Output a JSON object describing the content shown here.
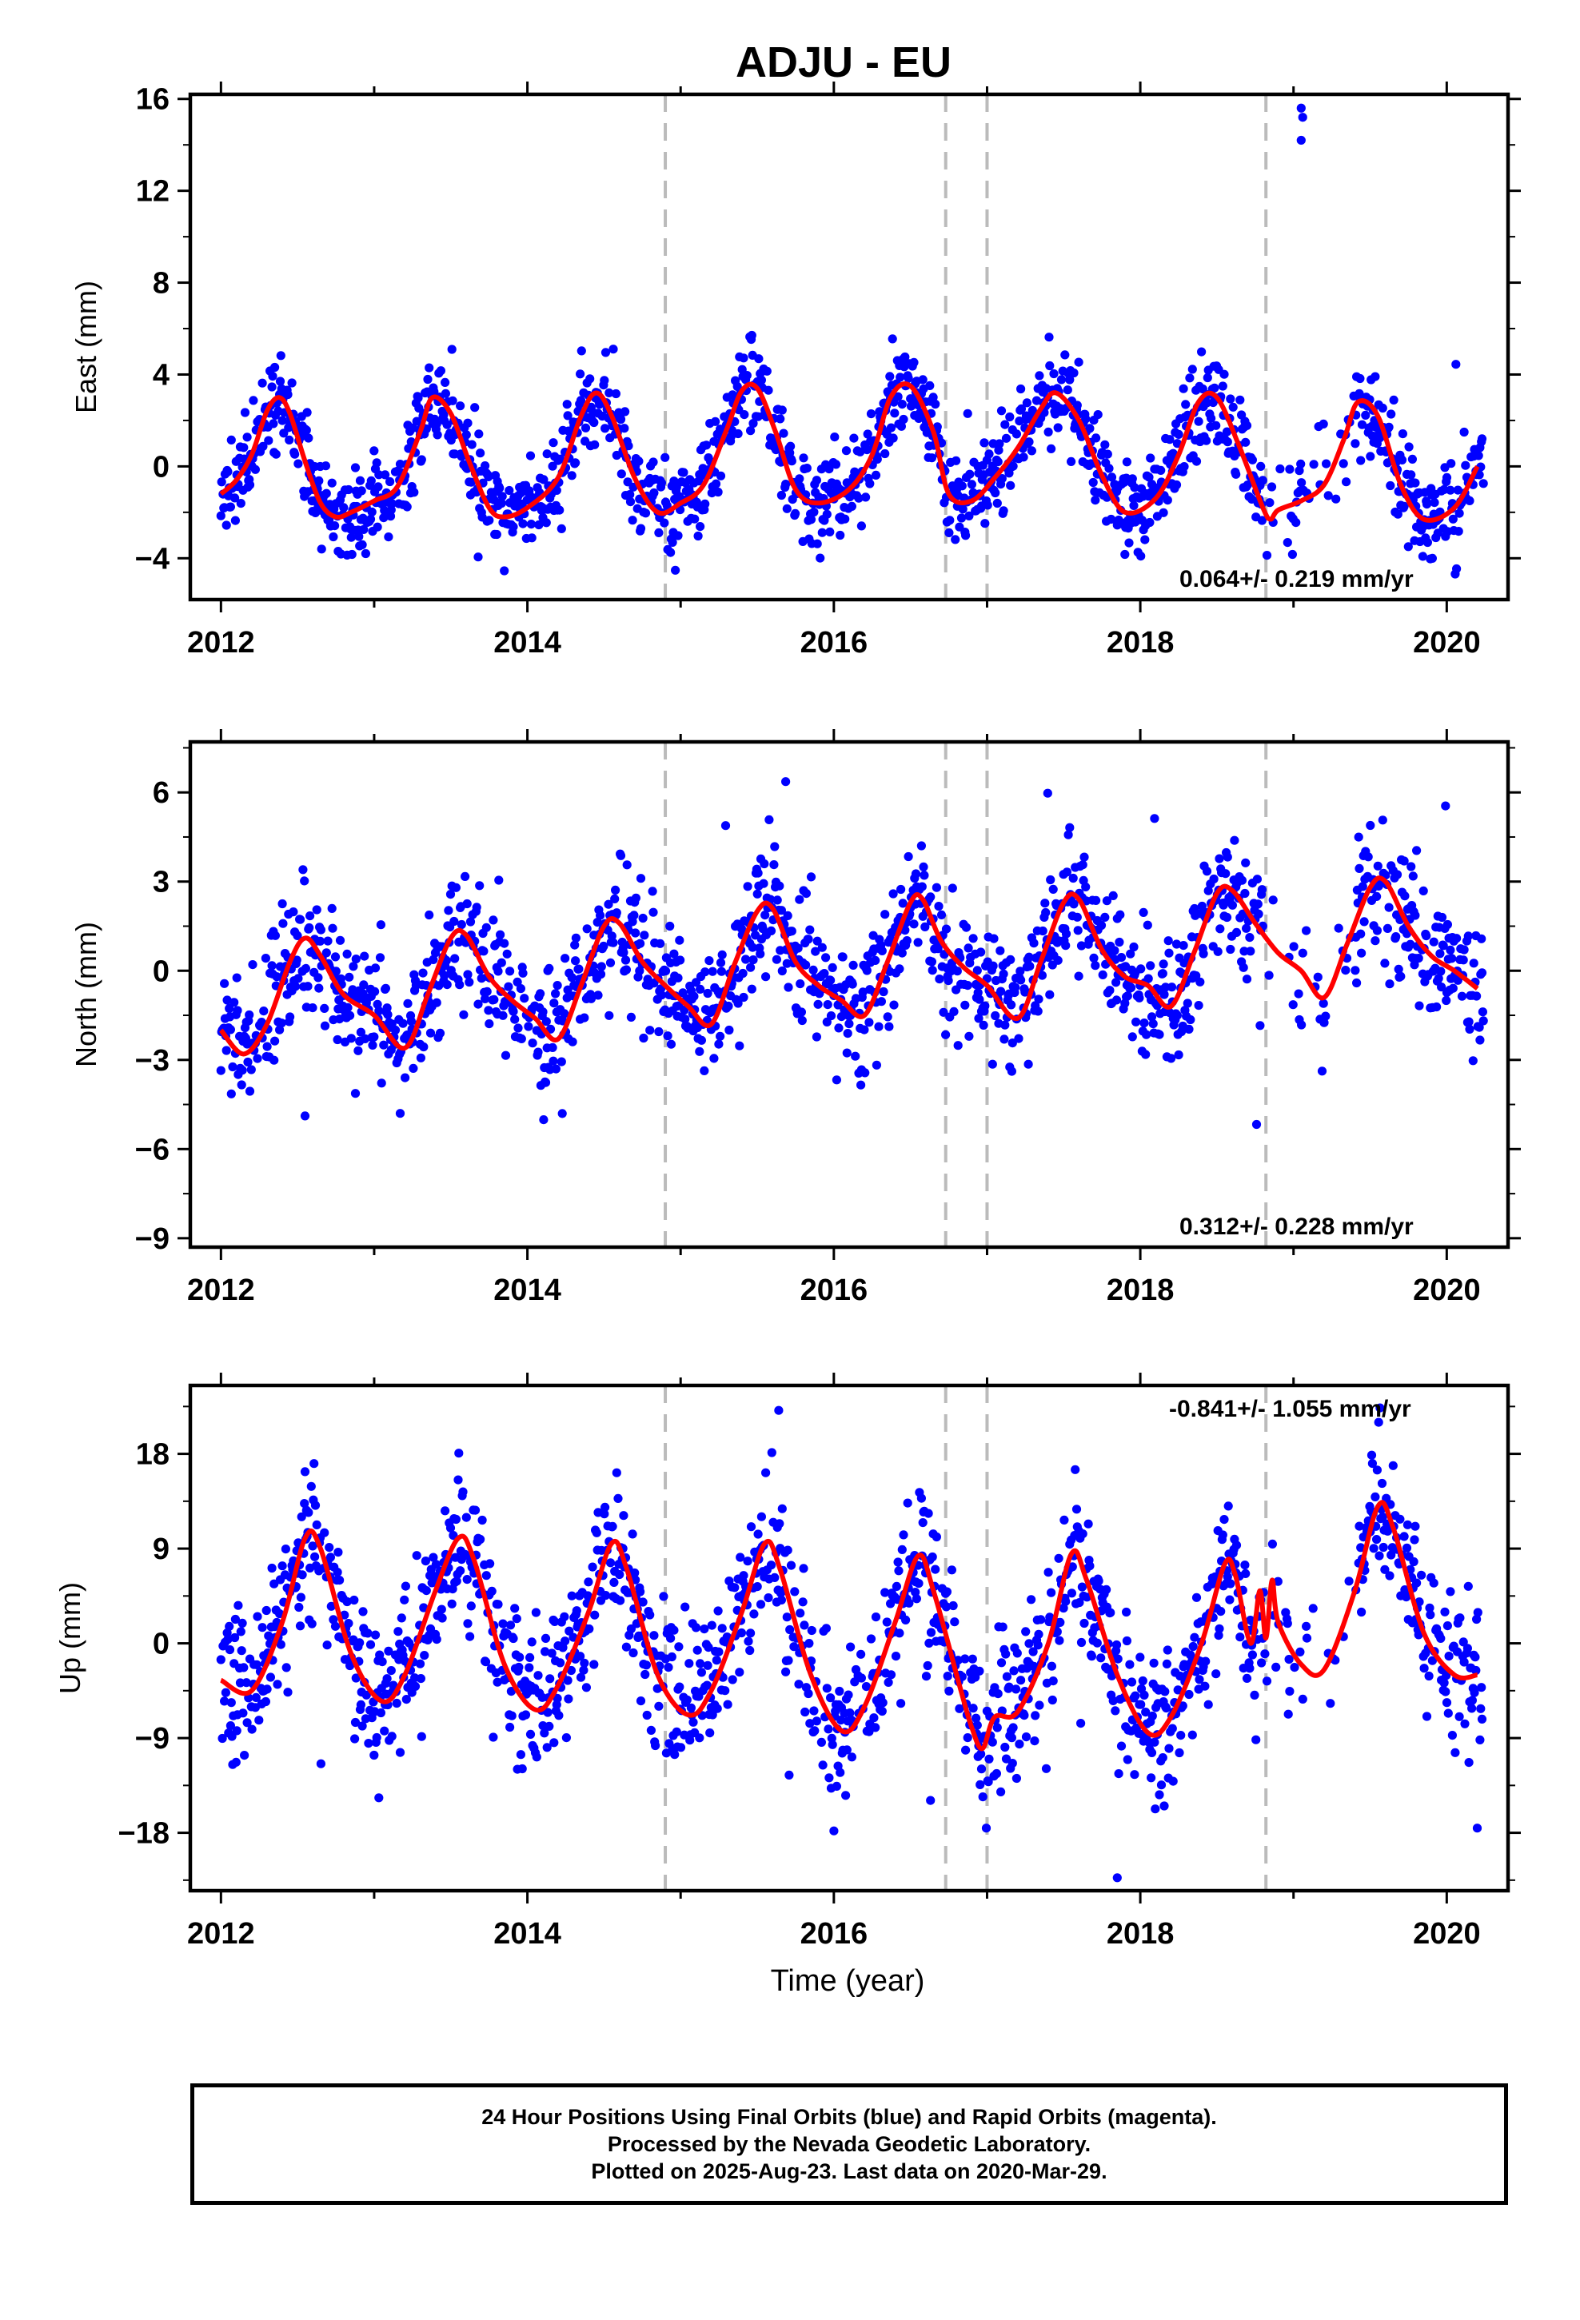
{
  "page_title": "ADJU - EU",
  "colors": {
    "final_orbits": "#0000ff",
    "fit_curve": "#ff0000",
    "event_lines": "#bbbbbb",
    "frame": "#000000"
  },
  "footer": {
    "line1": "24 Hour Positions Using Final Orbits (blue) and Rapid Orbits (magenta).",
    "line2": "Processed by the Nevada Geodetic Laboratory.",
    "line3": "Plotted on 2025-Aug-23. Last data on 2020-Mar-29."
  },
  "chart_data": [
    {
      "type": "scatter",
      "title": "ADJU - EU",
      "component": "east",
      "xlabel": "",
      "ylabel": "East (mm)",
      "xlim": [
        2011.8,
        2020.4
      ],
      "ylim": [
        -5.8,
        16.2
      ],
      "xticks": [
        2012,
        2014,
        2016,
        2018,
        2020
      ],
      "yticks": [
        -4,
        0,
        4,
        8,
        12,
        16
      ],
      "event_lines": [
        2014.9,
        2016.73,
        2017.0,
        2018.82
      ],
      "rate_label": "0.064+/- 0.219 mm/yr",
      "rate_position": "bottom-right",
      "series": [
        {
          "role": "points",
          "color": "#0000ff"
        },
        {
          "role": "fit",
          "color": "#ff0000",
          "x": [
            2012.0,
            2012.1,
            2012.2,
            2012.3,
            2012.38,
            2012.45,
            2012.55,
            2012.65,
            2012.75,
            2012.85,
            2013.0,
            2013.15,
            2013.3,
            2013.38,
            2013.5,
            2013.62,
            2013.75,
            2013.85,
            2014.0,
            2014.2,
            2014.35,
            2014.45,
            2014.55,
            2014.7,
            2014.85,
            2015.0,
            2015.15,
            2015.3,
            2015.4,
            2015.5,
            2015.62,
            2015.75,
            2015.9,
            2016.1,
            2016.25,
            2016.37,
            2016.5,
            2016.65,
            2016.75,
            2016.9,
            2017.05,
            2017.2,
            2017.35,
            2017.45,
            2017.6,
            2017.75,
            2017.9,
            2018.1,
            2018.25,
            2018.38,
            2018.5,
            2018.65,
            2018.8,
            2018.85,
            2018.9,
            2019.05,
            2019.2,
            2019.33,
            2019.42,
            2019.55,
            2019.7,
            2019.85,
            2020.05,
            2020.2
          ],
          "y": [
            -1.2,
            -0.6,
            0.5,
            2.4,
            3.0,
            2.3,
            0.2,
            -1.6,
            -2.2,
            -2.0,
            -1.5,
            -0.9,
            1.5,
            3.0,
            2.3,
            0.2,
            -1.8,
            -2.2,
            -1.8,
            -0.5,
            2.2,
            3.2,
            2.2,
            -0.5,
            -2.0,
            -1.6,
            -0.8,
            1.6,
            3.3,
            3.4,
            1.5,
            -1.0,
            -1.6,
            -1.0,
            0.5,
            3.0,
            3.5,
            1.5,
            -1.2,
            -1.5,
            -0.5,
            0.8,
            2.5,
            3.2,
            2.0,
            -0.4,
            -2.0,
            -1.4,
            0.5,
            2.8,
            3.0,
            0.8,
            -1.8,
            -2.3,
            -1.9,
            -1.5,
            -0.8,
            1.2,
            2.8,
            2.2,
            -0.8,
            -2.3,
            -1.8,
            0.0
          ]
        }
      ]
    },
    {
      "type": "scatter",
      "component": "north",
      "xlabel": "",
      "ylabel": "North (mm)",
      "xlim": [
        2011.8,
        2020.4
      ],
      "ylim": [
        -9.3,
        7.7
      ],
      "xticks": [
        2012,
        2014,
        2016,
        2018,
        2020
      ],
      "yticks": [
        -9,
        -6,
        -3,
        0,
        3,
        6
      ],
      "event_lines": [
        2014.9,
        2016.73,
        2017.0,
        2018.82
      ],
      "rate_label": "0.312+/- 0.228 mm/yr",
      "rate_position": "bottom-right",
      "series": [
        {
          "role": "points",
          "color": "#0000ff"
        },
        {
          "role": "fit",
          "color": "#ff0000",
          "x": [
            2012.0,
            2012.15,
            2012.3,
            2012.45,
            2012.55,
            2012.65,
            2012.8,
            2013.0,
            2013.2,
            2013.35,
            2013.5,
            2013.6,
            2013.75,
            2013.9,
            2014.05,
            2014.2,
            2014.35,
            2014.5,
            2014.6,
            2014.75,
            2014.9,
            2015.05,
            2015.2,
            2015.35,
            2015.5,
            2015.6,
            2015.75,
            2015.9,
            2016.05,
            2016.2,
            2016.35,
            2016.5,
            2016.58,
            2016.7,
            2016.85,
            2017.0,
            2017.2,
            2017.35,
            2017.5,
            2017.6,
            2017.75,
            2017.9,
            2018.05,
            2018.2,
            2018.35,
            2018.5,
            2018.6,
            2018.75,
            2018.9,
            2019.05,
            2019.2,
            2019.35,
            2019.5,
            2019.6,
            2019.75,
            2019.9,
            2020.05,
            2020.2
          ],
          "y": [
            -2.0,
            -2.8,
            -1.8,
            0.3,
            1.1,
            0.5,
            -0.8,
            -1.5,
            -2.6,
            -0.8,
            1.1,
            1.2,
            -0.2,
            -1.0,
            -1.6,
            -2.3,
            -0.5,
            1.5,
            1.6,
            0.3,
            -0.5,
            -1.2,
            -1.8,
            0.2,
            2.0,
            2.1,
            0.3,
            -0.5,
            -1.0,
            -1.5,
            0.3,
            2.3,
            2.4,
            1.0,
            0.1,
            -0.5,
            -1.6,
            0.3,
            2.3,
            2.4,
            0.7,
            -0.2,
            -0.5,
            -1.2,
            0.6,
            2.6,
            2.7,
            1.6,
            0.6,
            0.0,
            -0.9,
            0.9,
            2.8,
            3.0,
            1.5,
            0.5,
            0.0,
            -0.6
          ]
        }
      ]
    },
    {
      "type": "scatter",
      "component": "up",
      "xlabel": "Time (year)",
      "ylabel": "Up (mm)",
      "xlim": [
        2011.8,
        2020.4
      ],
      "ylim": [
        -23.5,
        24.5
      ],
      "xticks": [
        2012,
        2014,
        2016,
        2018,
        2020
      ],
      "yticks": [
        -18,
        -9,
        0,
        9,
        18
      ],
      "event_lines": [
        2014.9,
        2016.73,
        2017.0,
        2018.82
      ],
      "rate_label": "-0.841+/- 1.055 mm/yr",
      "rate_position": "top-right",
      "series": [
        {
          "role": "points",
          "color": "#0000ff"
        },
        {
          "role": "fit",
          "color": "#ff0000",
          "x": [
            2012.0,
            2012.2,
            2012.4,
            2012.55,
            2012.65,
            2012.85,
            2013.05,
            2013.2,
            2013.4,
            2013.55,
            2013.65,
            2013.85,
            2014.05,
            2014.2,
            2014.4,
            2014.55,
            2014.65,
            2014.85,
            2015.05,
            2015.2,
            2015.4,
            2015.55,
            2015.65,
            2015.85,
            2016.05,
            2016.2,
            2016.4,
            2016.55,
            2016.65,
            2016.82,
            2016.9,
            2016.97,
            2017.05,
            2017.2,
            2017.4,
            2017.55,
            2017.65,
            2017.85,
            2018.05,
            2018.2,
            2018.4,
            2018.55,
            2018.62,
            2018.72,
            2018.78,
            2018.82,
            2018.86,
            2018.9,
            2019.05,
            2019.2,
            2019.4,
            2019.55,
            2019.65,
            2019.85,
            2020.05,
            2020.2
          ],
          "y": [
            -3.5,
            -4.5,
            2.0,
            10.0,
            9.0,
            -1.0,
            -5.5,
            -3.0,
            5.0,
            10.0,
            8.0,
            -2.0,
            -6.3,
            -4.0,
            3.0,
            9.5,
            7.0,
            -3.0,
            -6.8,
            -4.5,
            3.0,
            9.5,
            7.0,
            -3.0,
            -8.3,
            -6.0,
            2.0,
            8.3,
            5.0,
            -4.0,
            -8.0,
            -10.0,
            -7.0,
            -6.5,
            0.0,
            8.5,
            6.0,
            -3.0,
            -8.5,
            -7.0,
            0.0,
            7.5,
            6.5,
            0.0,
            5.0,
            0.5,
            6.0,
            2.0,
            -2.0,
            -2.5,
            5.0,
            13.0,
            11.0,
            1.0,
            -3.0,
            -3.0
          ]
        }
      ]
    }
  ]
}
